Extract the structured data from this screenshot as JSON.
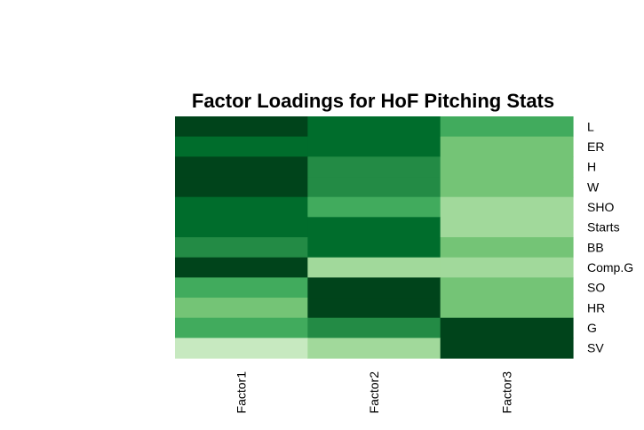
{
  "chart_data": {
    "type": "heatmap",
    "title": "Factor Loadings for HoF Pitching Stats",
    "columns": [
      "Factor1",
      "Factor2",
      "Factor3"
    ],
    "rows": [
      "L",
      "ER",
      "H",
      "W",
      "SHO",
      "Starts",
      "BB",
      "Comp.G",
      "SO",
      "HR",
      "G",
      "SV"
    ],
    "color_levels": 7,
    "palette": [
      "#c7e9c0",
      "#a1d99b",
      "#74c476",
      "#41ab5d",
      "#238b45",
      "#006d2c",
      "#00441b"
    ],
    "values": [
      [
        7,
        6,
        4
      ],
      [
        6,
        6,
        3
      ],
      [
        7,
        5,
        3
      ],
      [
        7,
        5,
        3
      ],
      [
        6,
        4,
        2
      ],
      [
        6,
        6,
        2
      ],
      [
        5,
        6,
        3
      ],
      [
        7,
        2,
        2
      ],
      [
        4,
        7,
        3
      ],
      [
        3,
        7,
        3
      ],
      [
        4,
        5,
        7
      ],
      [
        1,
        2,
        7
      ]
    ]
  }
}
